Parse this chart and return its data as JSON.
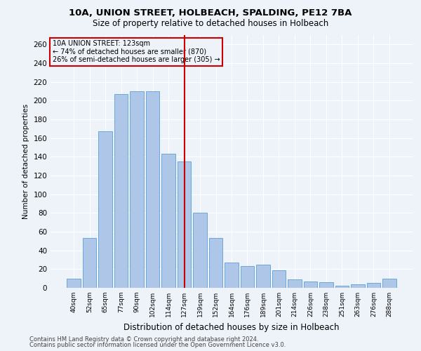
{
  "title1": "10A, UNION STREET, HOLBEACH, SPALDING, PE12 7BA",
  "title2": "Size of property relative to detached houses in Holbeach",
  "xlabel": "Distribution of detached houses by size in Holbeach",
  "ylabel": "Number of detached properties",
  "categories": [
    "40sqm",
    "52sqm",
    "65sqm",
    "77sqm",
    "90sqm",
    "102sqm",
    "114sqm",
    "127sqm",
    "139sqm",
    "152sqm",
    "164sqm",
    "176sqm",
    "189sqm",
    "201sqm",
    "214sqm",
    "226sqm",
    "238sqm",
    "251sqm",
    "263sqm",
    "276sqm",
    "288sqm"
  ],
  "values": [
    10,
    53,
    167,
    207,
    210,
    210,
    143,
    135,
    80,
    53,
    27,
    23,
    25,
    19,
    9,
    7,
    6,
    2,
    4,
    5,
    10
  ],
  "bar_color": "#aec6e8",
  "bar_edge_color": "#5a9fd4",
  "vline_x": 7,
  "vline_color": "#cc0000",
  "annotation_line1": "10A UNION STREET: 123sqm",
  "annotation_line2": "← 74% of detached houses are smaller (870)",
  "annotation_line3": "26% of semi-detached houses are larger (305) →",
  "box_color": "#cc0000",
  "ylim": [
    0,
    270
  ],
  "yticks": [
    0,
    20,
    40,
    60,
    80,
    100,
    120,
    140,
    160,
    180,
    200,
    220,
    240,
    260
  ],
  "footnote1": "Contains HM Land Registry data © Crown copyright and database right 2024.",
  "footnote2": "Contains public sector information licensed under the Open Government Licence v3.0.",
  "background_color": "#eef2f9",
  "grid_color": "#ffffff"
}
